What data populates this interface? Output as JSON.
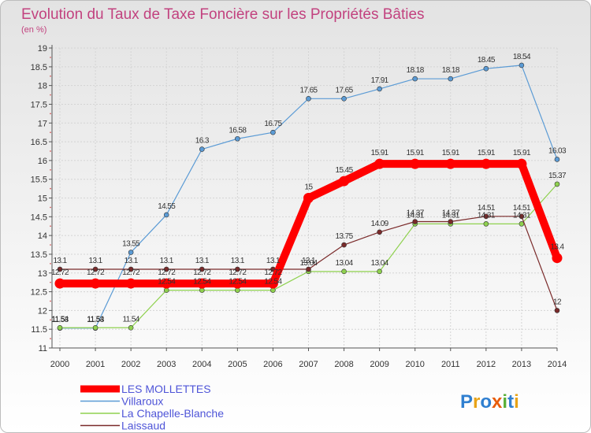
{
  "chart_data": {
    "type": "line",
    "title": "Evolution du Taux de Taxe Foncière sur les Propriétés Bâties",
    "subtitle": "(en %)",
    "xlabel": "",
    "ylabel": "",
    "ylim": [
      11,
      19
    ],
    "yticks": [
      "11",
      "11.5",
      "12",
      "12.5",
      "13",
      "13.5",
      "14",
      "14.5",
      "15",
      "15.5",
      "16",
      "16.5",
      "17",
      "17.5",
      "18",
      "18.5",
      "19"
    ],
    "categories": [
      "2000",
      "2001",
      "2002",
      "2003",
      "2004",
      "2005",
      "2006",
      "2007",
      "2008",
      "2009",
      "2010",
      "2011",
      "2012",
      "2013",
      "2014"
    ],
    "series": [
      {
        "name": "Villaroux",
        "color": "#5b9bd5",
        "values": [
          11.53,
          11.53,
          13.55,
          14.55,
          16.3,
          16.58,
          16.75,
          17.65,
          17.65,
          17.91,
          18.18,
          18.18,
          18.45,
          18.54,
          16.03
        ],
        "labels": [
          "11.53",
          "11.53",
          "13.55",
          "14.55",
          "16.3",
          "16.58",
          "16.75",
          "17.65",
          "17.65",
          "17.91",
          "18.18",
          "18.18",
          "18.45",
          "18.54",
          "16.03"
        ]
      },
      {
        "name": "La Chapelle-Blanche",
        "color": "#8fd14f",
        "values": [
          11.54,
          11.54,
          11.54,
          12.54,
          12.54,
          12.54,
          12.54,
          13.04,
          13.04,
          13.04,
          14.31,
          14.31,
          14.31,
          14.31,
          15.37
        ],
        "labels": [
          "11.54",
          "11.54",
          "11.54",
          "12.54",
          "12.54",
          "12.54",
          "12.54",
          "13.04",
          "13.04",
          "13.04",
          "14.31",
          "14.31",
          "14.31",
          "14.31",
          "15.37"
        ]
      },
      {
        "name": "Laissaud",
        "color": "#7a2a2a",
        "values": [
          13.1,
          13.1,
          13.1,
          13.1,
          13.1,
          13.1,
          13.1,
          13.1,
          13.75,
          14.09,
          14.37,
          14.37,
          14.51,
          14.51,
          12.0
        ],
        "labels": [
          "13.1",
          "13.1",
          "13.1",
          "13.1",
          "13.1",
          "13.1",
          "13.1",
          "13.1",
          "13.75",
          "14.09",
          "14.37",
          "14.37",
          "14.51",
          "14.51",
          "12"
        ]
      },
      {
        "name": "LES MOLLETTES",
        "color": "#ff0000",
        "values": [
          12.72,
          12.72,
          12.72,
          12.72,
          12.72,
          12.72,
          12.72,
          15.0,
          15.45,
          15.91,
          15.91,
          15.91,
          15.91,
          15.91,
          13.4
        ],
        "labels": [
          "12.72",
          "12.72",
          "12.72",
          "12.72",
          "12.72",
          "12.72",
          "12.72",
          "15",
          "15.45",
          "15.91",
          "15.91",
          "15.91",
          "15.91",
          "15.91",
          "13.4"
        ]
      }
    ],
    "legend": [
      {
        "name": "LES MOLLETTES",
        "color": "#ff0000"
      },
      {
        "name": "Villaroux",
        "color": "#5b9bd5"
      },
      {
        "name": "La Chapelle-Blanche",
        "color": "#8fd14f"
      },
      {
        "name": "Laissaud",
        "color": "#7a2a2a"
      }
    ],
    "legend_position": "bottom-left"
  },
  "branding": {
    "logo_text": "Proxiti",
    "logo_colors": [
      "#2f7fd0",
      "#e8a317",
      "#2f7fd0",
      "#e85d0c",
      "#58b038",
      "#2f7fd0",
      "#e8a317"
    ]
  }
}
